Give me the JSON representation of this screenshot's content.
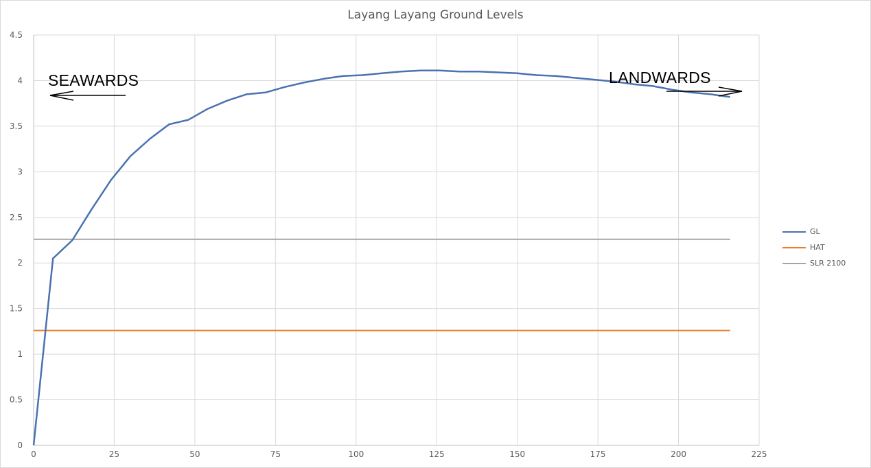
{
  "chart_data": {
    "type": "line",
    "title": "Layang Layang Ground Levels",
    "xlabel": "",
    "ylabel": "",
    "xlim": [
      0,
      225
    ],
    "ylim": [
      0,
      4.5
    ],
    "x_ticks": [
      0,
      25,
      50,
      75,
      100,
      125,
      150,
      175,
      200,
      225
    ],
    "y_ticks": [
      0,
      0.5,
      1,
      1.5,
      2,
      2.5,
      3,
      3.5,
      4,
      4.5
    ],
    "grid": true,
    "legend_position": "right",
    "series": [
      {
        "name": "GL",
        "color": "#4a72b0",
        "x": [
          0,
          6,
          12,
          18,
          24,
          30,
          36,
          42,
          48,
          54,
          60,
          66,
          72,
          78,
          84,
          90,
          96,
          102,
          108,
          114,
          120,
          126,
          132,
          138,
          144,
          150,
          156,
          162,
          168,
          174,
          180,
          186,
          192,
          198,
          204,
          210,
          216
        ],
        "values": [
          0,
          2.05,
          2.25,
          2.59,
          2.91,
          3.17,
          3.36,
          3.52,
          3.57,
          3.69,
          3.78,
          3.85,
          3.87,
          3.93,
          3.98,
          4.02,
          4.05,
          4.06,
          4.08,
          4.1,
          4.11,
          4.11,
          4.1,
          4.1,
          4.09,
          4.08,
          4.06,
          4.05,
          4.03,
          4.01,
          3.99,
          3.96,
          3.94,
          3.9,
          3.87,
          3.85,
          3.82
        ]
      },
      {
        "name": "HAT",
        "color": "#ed7d31",
        "x": [
          0,
          216
        ],
        "values": [
          1.26,
          1.26
        ]
      },
      {
        "name": "SLR 2100",
        "color": "#a5a5a5",
        "x": [
          0,
          216
        ],
        "values": [
          2.26,
          2.26
        ]
      }
    ],
    "annotations": [
      {
        "text": "SEAWARDS",
        "arrow": "left"
      },
      {
        "text": "LANDWARDS",
        "arrow": "right"
      }
    ]
  },
  "legend": [
    {
      "label": "GL",
      "color": "#4a72b0"
    },
    {
      "label": "HAT",
      "color": "#ed7d31"
    },
    {
      "label": "SLR 2100",
      "color": "#a5a5a5"
    }
  ],
  "annotations": {
    "seawards": "SEAWARDS",
    "landwards": "LANDWARDS"
  }
}
